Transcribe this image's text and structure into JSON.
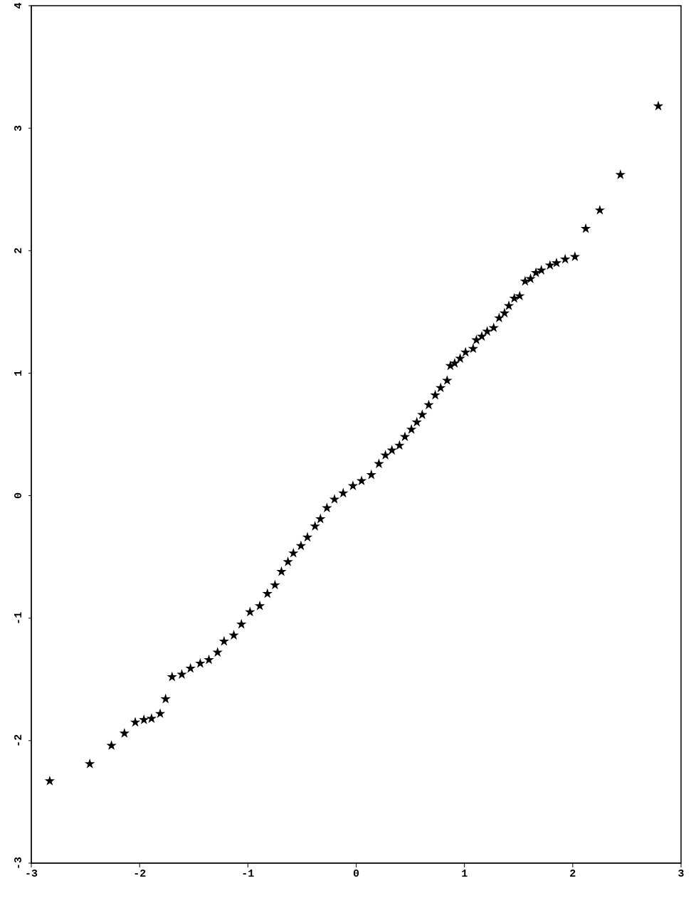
{
  "chart_data": {
    "type": "scatter",
    "marker": "star",
    "grid": false,
    "xlim": [
      -3,
      3
    ],
    "ylim": [
      -3,
      4
    ],
    "xticks": [
      -3,
      -2,
      -1,
      0,
      1,
      2,
      3
    ],
    "yticks": [
      -3,
      -2,
      -1,
      0,
      1,
      2,
      3,
      4
    ],
    "series": [
      {
        "color": "#000000",
        "x": [
          2.79,
          2.44,
          2.25,
          2.12,
          2.02,
          1.93,
          1.85,
          1.79,
          1.71,
          1.66,
          1.61,
          1.56,
          1.51,
          1.46,
          1.41,
          1.37,
          1.32,
          1.27,
          1.21,
          1.16,
          1.11,
          1.08,
          1.01,
          0.96,
          0.91,
          0.87,
          0.84,
          0.78,
          0.73,
          0.67,
          0.61,
          0.56,
          0.51,
          0.45,
          0.4,
          0.33,
          0.27,
          0.21,
          0.14,
          0.05,
          -0.03,
          -0.12,
          -0.2,
          -0.27,
          -0.33,
          -0.38,
          -0.45,
          -0.51,
          -0.58,
          -0.63,
          -0.69,
          -0.75,
          -0.82,
          -0.89,
          -0.98,
          -1.06,
          -1.13,
          -1.22,
          -1.28,
          -1.36,
          -1.44,
          -1.53,
          -1.61,
          -1.7,
          -1.76,
          -1.81,
          -1.89,
          -1.96,
          -2.04,
          -2.14,
          -2.26,
          -2.46,
          -2.83
        ],
        "values": [
          3.18,
          2.62,
          2.33,
          2.18,
          1.95,
          1.93,
          1.9,
          1.88,
          1.84,
          1.82,
          1.77,
          1.75,
          1.63,
          1.61,
          1.55,
          1.49,
          1.45,
          1.37,
          1.34,
          1.3,
          1.27,
          1.2,
          1.17,
          1.12,
          1.08,
          1.06,
          0.94,
          0.88,
          0.82,
          0.74,
          0.66,
          0.6,
          0.54,
          0.48,
          0.41,
          0.37,
          0.33,
          0.26,
          0.17,
          0.12,
          0.08,
          0.02,
          -0.03,
          -0.1,
          -0.19,
          -0.25,
          -0.34,
          -0.41,
          -0.47,
          -0.54,
          -0.62,
          -0.73,
          -0.8,
          -0.9,
          -0.95,
          -1.05,
          -1.14,
          -1.19,
          -1.28,
          -1.34,
          -1.37,
          -1.41,
          -1.46,
          -1.48,
          -1.66,
          -1.78,
          -1.82,
          -1.83,
          -1.85,
          -1.94,
          -2.04,
          -2.19,
          -2.33
        ]
      }
    ]
  }
}
